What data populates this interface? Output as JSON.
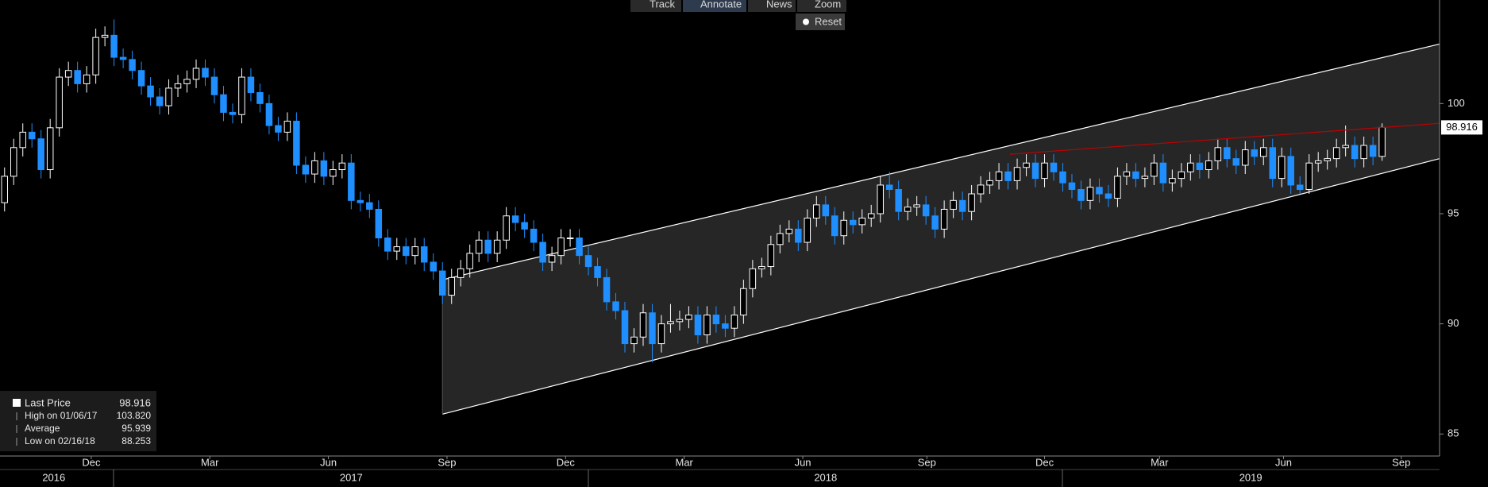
{
  "toolbar": {
    "buttons": [
      "Track",
      "Annotate",
      "News",
      "Zoom"
    ],
    "reset": "Reset"
  },
  "chart_data": {
    "type": "candlestick",
    "open": [
      95.5,
      96.7,
      98.0,
      98.7,
      98.4,
      97.0,
      98.9,
      101.2,
      101.5,
      100.9,
      101.3,
      103.0,
      103.1,
      102.1,
      102.0,
      101.5,
      100.8,
      100.3,
      99.9,
      100.7,
      100.9,
      101.1,
      101.6,
      101.2,
      100.4,
      99.6,
      99.5,
      101.2,
      100.5,
      100.0,
      99.0,
      98.7,
      99.2,
      97.2,
      96.8,
      97.4,
      96.7,
      97.0,
      97.3,
      95.6,
      95.5,
      95.2,
      93.9,
      93.3,
      93.5,
      93.1,
      93.5,
      92.8,
      92.4,
      91.3,
      92.1,
      92.5,
      93.2,
      93.8,
      93.2,
      93.8,
      94.9,
      94.6,
      94.3,
      93.7,
      92.8,
      93.1,
      93.9,
      93.9,
      93.1,
      92.6,
      92.1,
      91.0,
      90.6,
      89.1,
      89.4,
      90.5,
      89.1,
      90.0,
      90.1,
      90.2,
      90.4,
      89.5,
      90.4,
      90.0,
      89.8,
      90.4,
      91.6,
      92.5,
      92.6,
      93.6,
      94.1,
      94.3,
      93.7,
      94.8,
      95.4,
      94.9,
      94.0,
      94.7,
      94.5,
      94.8,
      95.0,
      96.3,
      96.1,
      95.1,
      95.3,
      95.4,
      94.9,
      94.3,
      95.2,
      95.6,
      95.1,
      95.9,
      96.3,
      96.5,
      96.9,
      96.5,
      97.1,
      97.3,
      96.6,
      97.3,
      96.9,
      96.4,
      96.1,
      95.6,
      96.2,
      95.9,
      95.7,
      96.7,
      96.9,
      96.6,
      96.7,
      97.3,
      96.4,
      96.6,
      96.9,
      97.3,
      97.0,
      97.4,
      98.0,
      97.5,
      97.2,
      97.9,
      97.6,
      98.0,
      96.6,
      97.6,
      96.3,
      96.1,
      97.3,
      97.4,
      97.5,
      98.0,
      98.1,
      97.5,
      98.1,
      97.6
    ],
    "high": [
      97.1,
      98.4,
      99.1,
      99.1,
      98.8,
      99.3,
      101.6,
      101.9,
      101.9,
      101.7,
      103.4,
      103.5,
      103.82,
      102.5,
      102.4,
      101.9,
      101.2,
      100.7,
      101.1,
      101.3,
      101.5,
      102.0,
      102.0,
      101.6,
      100.8,
      100.0,
      101.6,
      101.6,
      100.9,
      100.4,
      99.4,
      99.6,
      99.6,
      97.6,
      97.8,
      97.8,
      97.4,
      97.7,
      97.7,
      96.0,
      95.9,
      95.6,
      94.3,
      93.9,
      93.9,
      93.9,
      93.9,
      93.2,
      92.8,
      92.5,
      92.9,
      93.6,
      94.2,
      94.2,
      94.2,
      95.3,
      95.3,
      95.0,
      94.7,
      94.1,
      93.5,
      94.3,
      94.3,
      94.3,
      93.5,
      93.0,
      92.5,
      91.4,
      91.0,
      89.8,
      90.9,
      90.9,
      90.4,
      90.9,
      90.6,
      90.8,
      90.8,
      90.8,
      90.8,
      90.4,
      90.8,
      92.0,
      92.9,
      93.0,
      94.0,
      94.5,
      94.7,
      94.7,
      95.2,
      95.8,
      95.8,
      95.3,
      95.1,
      95.1,
      95.2,
      95.4,
      96.7,
      96.9,
      96.5,
      95.7,
      95.8,
      95.8,
      95.3,
      95.6,
      96.0,
      96.0,
      96.3,
      96.7,
      96.9,
      97.3,
      97.3,
      97.5,
      97.7,
      97.7,
      97.7,
      97.7,
      97.3,
      96.8,
      96.5,
      96.6,
      96.6,
      96.3,
      97.1,
      97.3,
      97.3,
      97.1,
      97.7,
      97.7,
      97.0,
      97.3,
      97.7,
      97.7,
      97.8,
      98.4,
      98.4,
      97.9,
      98.3,
      98.3,
      98.4,
      98.4,
      98.0,
      98.0,
      96.7,
      97.7,
      97.8,
      97.9,
      98.4,
      99.0,
      98.5,
      98.5,
      98.5,
      99.1
    ],
    "low": [
      95.1,
      96.3,
      97.6,
      98.0,
      96.6,
      96.6,
      98.5,
      100.8,
      100.5,
      100.5,
      100.9,
      102.6,
      101.7,
      101.6,
      101.1,
      100.4,
      99.9,
      99.5,
      99.5,
      100.3,
      100.5,
      100.7,
      100.8,
      100.0,
      99.2,
      99.1,
      99.1,
      100.1,
      99.6,
      98.6,
      98.3,
      98.3,
      96.8,
      96.4,
      96.4,
      96.3,
      96.3,
      96.6,
      95.2,
      95.1,
      94.8,
      93.5,
      92.9,
      92.9,
      92.7,
      92.7,
      92.4,
      92.0,
      90.9,
      90.9,
      91.7,
      92.1,
      92.8,
      92.8,
      92.8,
      93.4,
      94.2,
      93.9,
      93.3,
      92.4,
      92.4,
      92.7,
      93.5,
      92.7,
      92.2,
      91.7,
      90.6,
      90.2,
      88.7,
      88.7,
      89.0,
      88.253,
      88.7,
      89.6,
      89.7,
      89.8,
      89.1,
      89.1,
      89.6,
      89.4,
      89.4,
      90.0,
      91.2,
      92.1,
      92.2,
      93.2,
      93.7,
      93.3,
      93.3,
      94.4,
      94.5,
      93.6,
      93.6,
      94.1,
      94.1,
      94.4,
      94.6,
      95.7,
      94.7,
      94.7,
      94.9,
      94.5,
      93.9,
      93.9,
      94.8,
      94.7,
      94.7,
      95.5,
      95.9,
      96.1,
      96.1,
      96.1,
      96.7,
      96.2,
      96.2,
      96.5,
      96.0,
      95.7,
      95.2,
      95.2,
      95.5,
      95.3,
      95.3,
      96.3,
      96.2,
      96.2,
      96.3,
      96.0,
      96.0,
      96.2,
      96.5,
      96.6,
      96.6,
      97.0,
      97.1,
      96.8,
      96.8,
      97.2,
      97.2,
      96.2,
      96.2,
      95.9,
      95.9,
      95.9,
      96.9,
      97.0,
      97.1,
      97.6,
      97.1,
      97.1,
      97.2,
      97.4
    ],
    "close": [
      96.7,
      98.0,
      98.7,
      98.4,
      97.0,
      98.9,
      101.2,
      101.5,
      100.9,
      101.3,
      103.0,
      103.1,
      102.1,
      102.0,
      101.5,
      100.8,
      100.3,
      99.9,
      100.7,
      100.9,
      101.1,
      101.6,
      101.2,
      100.4,
      99.6,
      99.5,
      101.2,
      100.5,
      100.0,
      99.0,
      98.7,
      99.2,
      97.2,
      96.8,
      97.4,
      96.7,
      97.0,
      97.3,
      95.6,
      95.5,
      95.2,
      93.9,
      93.3,
      93.5,
      93.1,
      93.5,
      92.8,
      92.4,
      91.3,
      92.1,
      92.5,
      93.2,
      93.8,
      93.2,
      93.8,
      94.9,
      94.6,
      94.3,
      93.7,
      92.8,
      93.1,
      93.9,
      93.9,
      93.1,
      92.6,
      92.1,
      91.0,
      90.6,
      89.1,
      89.4,
      90.5,
      89.1,
      90.0,
      90.1,
      90.2,
      90.4,
      89.5,
      90.4,
      90.0,
      89.8,
      90.4,
      91.6,
      92.5,
      92.6,
      93.6,
      94.1,
      94.3,
      93.7,
      94.8,
      95.4,
      94.9,
      94.0,
      94.7,
      94.5,
      94.8,
      95.0,
      96.3,
      96.1,
      95.1,
      95.3,
      95.4,
      94.9,
      94.3,
      95.2,
      95.6,
      95.1,
      95.9,
      96.3,
      96.5,
      96.9,
      96.5,
      97.1,
      97.3,
      96.6,
      97.3,
      96.9,
      96.4,
      96.1,
      95.6,
      96.2,
      95.9,
      95.7,
      96.7,
      96.9,
      96.6,
      96.7,
      97.3,
      96.4,
      96.6,
      96.9,
      97.3,
      97.0,
      97.4,
      98.0,
      97.5,
      97.2,
      97.9,
      97.6,
      98.0,
      96.6,
      97.6,
      96.3,
      96.1,
      97.3,
      97.4,
      97.5,
      98.0,
      98.1,
      97.5,
      98.1,
      97.6,
      98.916
    ],
    "up_color": "#000000",
    "down_color": "#1f8fff",
    "edge_color": "#ffffff",
    "xlim": [
      -0.5,
      157.3
    ],
    "ylim": [
      84,
      104.7
    ],
    "yticks": [
      85,
      90,
      95,
      100
    ],
    "xticks": [
      {
        "value": 9.5,
        "label": "Dec"
      },
      {
        "value": 22.5,
        "label": "Mar"
      },
      {
        "value": 35.5,
        "label": "Jun"
      },
      {
        "value": 48.5,
        "label": "Sep"
      },
      {
        "value": 61.5,
        "label": "Dec"
      },
      {
        "value": 74.5,
        "label": "Mar"
      },
      {
        "value": 87.5,
        "label": "Jun"
      },
      {
        "value": 101.1,
        "label": "Sep"
      },
      {
        "value": 114.0,
        "label": "Dec"
      },
      {
        "value": 126.6,
        "label": "Mar"
      },
      {
        "value": 140.2,
        "label": "Jun"
      },
      {
        "value": 153.1,
        "label": "Sep"
      }
    ],
    "year_ticks": [
      {
        "value": 5.4,
        "label": "2016"
      },
      {
        "value": 38.0,
        "label": "2017"
      },
      {
        "value": 90.0,
        "label": "2018"
      },
      {
        "value": 136.6,
        "label": "2019"
      }
    ],
    "channel": {
      "x": [
        48,
        157.3
      ],
      "upper": [
        92.0,
        102.7
      ],
      "lower": [
        85.9,
        97.5
      ],
      "color": "#ffffff"
    },
    "trendline": {
      "x": [
        110.2,
        157.3
      ],
      "y": [
        97.7,
        99.1
      ],
      "color": "#c00000"
    },
    "stats": {
      "labels": [
        "Last Price",
        "High on 01/06/17",
        "Average",
        "Low on 02/16/18"
      ],
      "values": [
        98.916,
        103.82,
        95.939,
        88.253
      ],
      "value_labels": [
        "98.916",
        "103.820",
        "95.939",
        "88.253"
      ]
    }
  }
}
